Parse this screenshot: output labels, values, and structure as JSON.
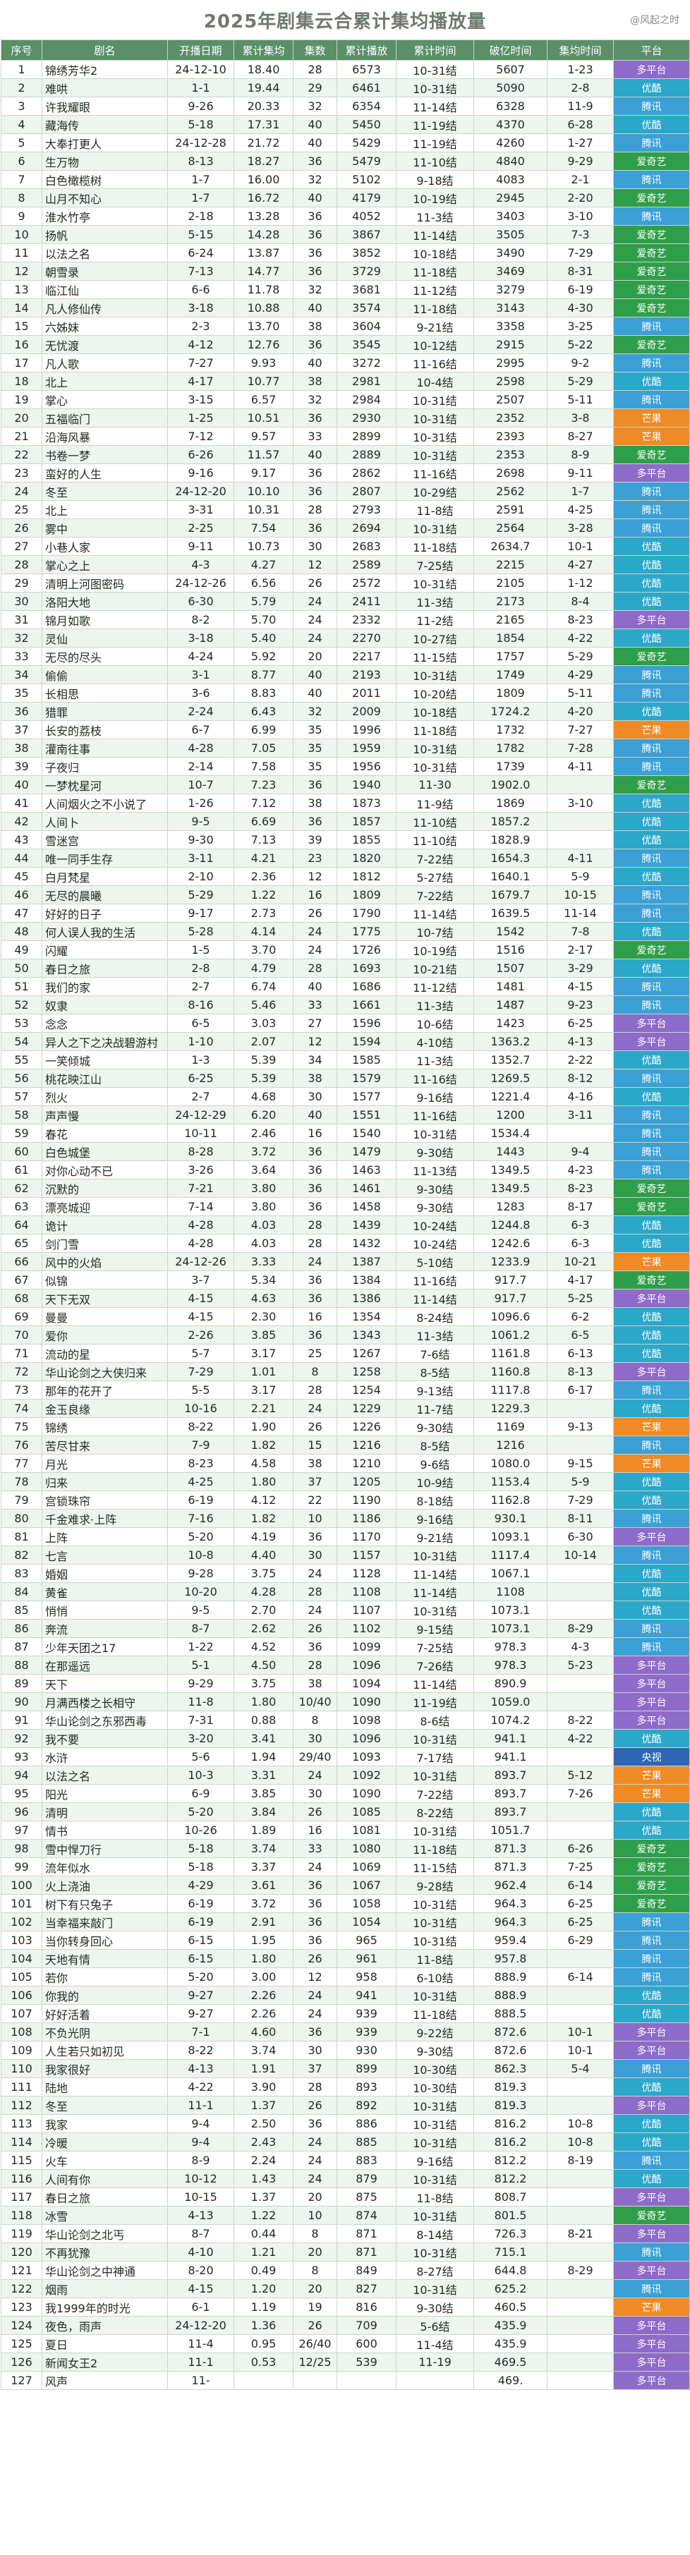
{
  "title": "2025年剧集云合累计集均播放量",
  "source": "@风起之时",
  "headers": [
    "序号",
    "剧名",
    "开播日期",
    "累计集均",
    "集数",
    "累计播放",
    "累计时间",
    "破亿时间",
    "集均时间",
    "平台"
  ],
  "platforms": {
    "爱奇艺": "p-iqiyi",
    "腾讯": "p-tencent",
    "优酷": "p-youku",
    "芒果": "p-mango",
    "多平台": "p-multi",
    "央视": "p-cctv"
  },
  "rows": [
    [
      "1",
      "锦绣芳华2",
      "24-12-10",
      "18.40",
      "28",
      "6573",
      "10-31结",
      "5607",
      "1-23",
      "多平台"
    ],
    [
      "2",
      "难哄",
      "1-1",
      "19.44",
      "29",
      "6461",
      "10-31结",
      "5090",
      "2-8",
      "优酷"
    ],
    [
      "3",
      "许我耀眼",
      "9-26",
      "20.33",
      "32",
      "6354",
      "11-14结",
      "6328",
      "11-9",
      "腾讯"
    ],
    [
      "4",
      "藏海传",
      "5-18",
      "17.31",
      "40",
      "5450",
      "11-19结",
      "4370",
      "6-28",
      "优酷"
    ],
    [
      "5",
      "大奉打更人",
      "24-12-28",
      "21.72",
      "40",
      "5429",
      "11-19结",
      "4260",
      "1-27",
      "腾讯"
    ],
    [
      "6",
      "生万物",
      "8-13",
      "18.27",
      "36",
      "5479",
      "11-10结",
      "4840",
      "9-29",
      "爱奇艺"
    ],
    [
      "7",
      "白色橄榄树",
      "1-7",
      "16.00",
      "32",
      "5102",
      "9-18结",
      "4083",
      "2-1",
      "腾讯"
    ],
    [
      "8",
      "山月不知心",
      "1-7",
      "16.72",
      "40",
      "4179",
      "10-19结",
      "2945",
      "2-20",
      "爱奇艺"
    ],
    [
      "9",
      "淮水竹亭",
      "2-18",
      "13.28",
      "36",
      "4052",
      "11-3结",
      "3403",
      "3-10",
      "腾讯"
    ],
    [
      "10",
      "扬帆",
      "5-15",
      "14.28",
      "36",
      "3867",
      "11-14结",
      "3505",
      "7-3",
      "爱奇艺"
    ],
    [
      "11",
      "以法之名",
      "6-24",
      "13.87",
      "36",
      "3852",
      "10-18结",
      "3490",
      "7-29",
      "爱奇艺"
    ],
    [
      "12",
      "朝雪录",
      "7-13",
      "14.77",
      "36",
      "3729",
      "11-18结",
      "3469",
      "8-31",
      "爱奇艺"
    ],
    [
      "13",
      "临江仙",
      "6-6",
      "11.78",
      "32",
      "3681",
      "11-12结",
      "3279",
      "6-19",
      "爱奇艺"
    ],
    [
      "14",
      "凡人修仙传",
      "3-18",
      "10.88",
      "40",
      "3574",
      "11-18结",
      "3143",
      "4-30",
      "爱奇艺"
    ],
    [
      "15",
      "六姊妹",
      "2-3",
      "13.70",
      "38",
      "3604",
      "9-21结",
      "3358",
      "3-25",
      "腾讯"
    ],
    [
      "16",
      "无忧渡",
      "4-12",
      "12.76",
      "36",
      "3545",
      "10-12结",
      "2915",
      "5-22",
      "爱奇艺"
    ],
    [
      "17",
      "凡人歌",
      "7-27",
      "9.93",
      "40",
      "3272",
      "11-16结",
      "2995",
      "9-2",
      "腾讯"
    ],
    [
      "18",
      "北上",
      "4-17",
      "10.77",
      "38",
      "2981",
      "10-4结",
      "2598",
      "5-29",
      "优酷"
    ],
    [
      "19",
      "掌心",
      "3-15",
      "6.57",
      "32",
      "2984",
      "10-31结",
      "2507",
      "5-11",
      "腾讯"
    ],
    [
      "20",
      "五福临门",
      "1-25",
      "10.51",
      "36",
      "2930",
      "10-31结",
      "2352",
      "3-8",
      "芒果"
    ],
    [
      "21",
      "沿海风暴",
      "7-12",
      "9.57",
      "33",
      "2899",
      "10-31结",
      "2393",
      "8-27",
      "芒果"
    ],
    [
      "22",
      "书卷一梦",
      "6-26",
      "11.57",
      "40",
      "2889",
      "10-31结",
      "2353",
      "8-9",
      "爱奇艺"
    ],
    [
      "23",
      "蛮好的人生",
      "9-16",
      "9.17",
      "36",
      "2862",
      "11-16结",
      "2698",
      "9-11",
      "多平台"
    ],
    [
      "24",
      "冬至",
      "24-12-20",
      "10.10",
      "36",
      "2807",
      "10-29结",
      "2562",
      "1-7",
      "腾讯"
    ],
    [
      "25",
      "北上",
      "3-31",
      "10.31",
      "28",
      "2793",
      "11-8结",
      "2591",
      "4-25",
      "腾讯"
    ],
    [
      "26",
      "雾中",
      "2-25",
      "7.54",
      "36",
      "2694",
      "10-31结",
      "2564",
      "3-28",
      "腾讯"
    ],
    [
      "27",
      "小巷人家",
      "9-11",
      "10.73",
      "30",
      "2683",
      "11-18结",
      "2634.7",
      "10-1",
      "优酷"
    ],
    [
      "28",
      "掌心之上",
      "4-3",
      "4.27",
      "12",
      "2589",
      "7-25结",
      "2215",
      "4-27",
      "优酷"
    ],
    [
      "29",
      "清明上河图密码",
      "24-12-26",
      "6.56",
      "26",
      "2572",
      "10-31结",
      "2105",
      "1-12",
      "优酷"
    ],
    [
      "30",
      "洛阳大地",
      "6-30",
      "5.79",
      "24",
      "2411",
      "11-3结",
      "2173",
      "8-4",
      "优酷"
    ],
    [
      "31",
      "锦月如歌",
      "8-2",
      "5.70",
      "24",
      "2332",
      "11-2结",
      "2165",
      "8-23",
      "多平台"
    ],
    [
      "32",
      "灵仙",
      "3-18",
      "5.40",
      "24",
      "2270",
      "10-27结",
      "1854",
      "4-22",
      "优酷"
    ],
    [
      "33",
      "无尽的尽头",
      "4-24",
      "5.92",
      "20",
      "2217",
      "11-15结",
      "1757",
      "5-29",
      "爱奇艺"
    ],
    [
      "34",
      "偷偷",
      "3-1",
      "8.77",
      "40",
      "2193",
      "10-31结",
      "1749",
      "4-29",
      "腾讯"
    ],
    [
      "35",
      "长相思",
      "3-6",
      "8.83",
      "40",
      "2011",
      "10-20结",
      "1809",
      "5-11",
      "腾讯"
    ],
    [
      "36",
      "猎罪",
      "2-24",
      "6.43",
      "32",
      "2009",
      "10-18结",
      "1724.2",
      "4-20",
      "优酷"
    ],
    [
      "37",
      "长安的荔枝",
      "6-7",
      "6.99",
      "35",
      "1996",
      "11-18结",
      "1732",
      "7-27",
      "芒果"
    ],
    [
      "38",
      "灌南往事",
      "4-28",
      "7.05",
      "35",
      "1959",
      "10-31结",
      "1782",
      "7-28",
      "腾讯"
    ],
    [
      "39",
      "子夜归",
      "2-14",
      "7.58",
      "35",
      "1956",
      "10-31结",
      "1739",
      "4-11",
      "腾讯"
    ],
    [
      "40",
      "一梦枕星河",
      "10-7",
      "7.23",
      "36",
      "1940",
      "11-30",
      "1902.0",
      "",
      "爱奇艺"
    ],
    [
      "41",
      "人间烟火之不小说了",
      "1-26",
      "7.12",
      "38",
      "1873",
      "11-9结",
      "1869",
      "3-10",
      "优酷"
    ],
    [
      "42",
      "人间卜",
      "9-5",
      "6.69",
      "36",
      "1857",
      "11-10结",
      "1857.2",
      "",
      "优酷"
    ],
    [
      "43",
      "雪迷宫",
      "9-30",
      "7.13",
      "39",
      "1855",
      "11-10结",
      "1828.9",
      "",
      "优酷"
    ],
    [
      "44",
      "唯一同手生存",
      "3-11",
      "4.21",
      "23",
      "1820",
      "7-22结",
      "1654.3",
      "4-11",
      "腾讯"
    ],
    [
      "45",
      "白月梵星",
      "2-10",
      "2.36",
      "12",
      "1812",
      "5-27结",
      "1640.1",
      "5-9",
      "优酷"
    ],
    [
      "46",
      "无尽的晨曦",
      "5-29",
      "1.22",
      "16",
      "1809",
      "7-22结",
      "1679.7",
      "10-15",
      "腾讯"
    ],
    [
      "47",
      "好好的日子",
      "9-17",
      "2.73",
      "26",
      "1790",
      "11-14结",
      "1639.5",
      "11-14",
      "腾讯"
    ],
    [
      "48",
      "何人误人我的生活",
      "5-28",
      "4.14",
      "24",
      "1775",
      "10-7结",
      "1542",
      "7-8",
      "优酷"
    ],
    [
      "49",
      "闪耀",
      "1-5",
      "3.70",
      "24",
      "1726",
      "10-19结",
      "1516",
      "2-17",
      "爱奇艺"
    ],
    [
      "50",
      "春日之旅",
      "2-8",
      "4.79",
      "28",
      "1693",
      "10-21结",
      "1507",
      "3-29",
      "优酷"
    ],
    [
      "51",
      "我们的家",
      "2-7",
      "6.74",
      "40",
      "1686",
      "11-12结",
      "1481",
      "4-15",
      "腾讯"
    ],
    [
      "52",
      "奴隶",
      "8-16",
      "5.46",
      "33",
      "1661",
      "11-3结",
      "1487",
      "9-23",
      "腾讯"
    ],
    [
      "53",
      "念念",
      "6-5",
      "3.03",
      "27",
      "1596",
      "10-6结",
      "1423",
      "6-25",
      "多平台"
    ],
    [
      "54",
      "异人之下之决战碧游村",
      "1-10",
      "2.07",
      "12",
      "1594",
      "4-10结",
      "1363.2",
      "4-13",
      "多平台"
    ],
    [
      "55",
      "一笑倾城",
      "1-3",
      "5.39",
      "34",
      "1585",
      "11-3结",
      "1352.7",
      "2-22",
      "优酷"
    ],
    [
      "56",
      "桃花映江山",
      "6-25",
      "5.39",
      "38",
      "1579",
      "11-16结",
      "1269.5",
      "8-12",
      "腾讯"
    ],
    [
      "57",
      "烈火",
      "2-7",
      "4.68",
      "30",
      "1577",
      "9-16结",
      "1221.4",
      "4-16",
      "优酷"
    ],
    [
      "58",
      "声声慢",
      "24-12-29",
      "6.20",
      "40",
      "1551",
      "11-16结",
      "1200",
      "3-11",
      "腾讯"
    ],
    [
      "59",
      "春花",
      "10-11",
      "2.46",
      "16",
      "1540",
      "10-31结",
      "1534.4",
      "",
      "腾讯"
    ],
    [
      "60",
      "白色城堡",
      "8-28",
      "3.72",
      "36",
      "1479",
      "9-30结",
      "1443",
      "9-4",
      "腾讯"
    ],
    [
      "61",
      "对你心动不已",
      "3-26",
      "3.64",
      "36",
      "1463",
      "11-13结",
      "1349.5",
      "4-23",
      "腾讯"
    ],
    [
      "62",
      "沉默的",
      "7-21",
      "3.80",
      "36",
      "1461",
      "9-30结",
      "1349.5",
      "8-23",
      "爱奇艺"
    ],
    [
      "63",
      "漂亮城迎",
      "7-14",
      "3.80",
      "36",
      "1458",
      "9-30结",
      "1283",
      "8-17",
      "爱奇艺"
    ],
    [
      "64",
      "诡计",
      "4-28",
      "4.03",
      "28",
      "1439",
      "10-24结",
      "1244.8",
      "6-3",
      "优酷"
    ],
    [
      "65",
      "剑门雪",
      "4-28",
      "4.03",
      "28",
      "1432",
      "10-24结",
      "1242.6",
      "6-3",
      "优酷"
    ],
    [
      "66",
      "风中的火焰",
      "24-12-26",
      "3.33",
      "24",
      "1387",
      "5-10结",
      "1233.9",
      "10-21",
      "芒果"
    ],
    [
      "67",
      "似锦",
      "3-7",
      "5.34",
      "36",
      "1384",
      "11-16结",
      "917.7",
      "4-17",
      "爱奇艺"
    ],
    [
      "68",
      "天下无双",
      "4-15",
      "4.63",
      "36",
      "1386",
      "11-14结",
      "917.7",
      "5-25",
      "多平台"
    ],
    [
      "69",
      "曼曼",
      "4-15",
      "2.30",
      "16",
      "1354",
      "8-24结",
      "1096.6",
      "6-2",
      "优酷"
    ],
    [
      "70",
      "爱你",
      "2-26",
      "3.85",
      "36",
      "1343",
      "11-3结",
      "1061.2",
      "6-5",
      "优酷"
    ],
    [
      "71",
      "流动的星",
      "5-7",
      "3.17",
      "25",
      "1267",
      "7-6结",
      "1161.8",
      "6-13",
      "优酷"
    ],
    [
      "72",
      "华山论剑之大侠归来",
      "7-29",
      "1.01",
      "8",
      "1258",
      "8-5结",
      "1160.8",
      "8-13",
      "多平台"
    ],
    [
      "73",
      "那年的花开了",
      "5-5",
      "3.17",
      "28",
      "1254",
      "9-13结",
      "1117.8",
      "6-17",
      "腾讯"
    ],
    [
      "74",
      "金玉良缘",
      "10-16",
      "2.21",
      "24",
      "1229",
      "11-7结",
      "1229.3",
      "",
      "优酷"
    ],
    [
      "75",
      "锦绣",
      "8-22",
      "1.90",
      "26",
      "1226",
      "9-30结",
      "1169",
      "9-13",
      "芒果"
    ],
    [
      "76",
      "苦尽甘来",
      "7-9",
      "1.82",
      "15",
      "1216",
      "8-5结",
      "1216",
      "",
      "腾讯"
    ],
    [
      "77",
      "月光",
      "8-23",
      "4.58",
      "38",
      "1210",
      "9-6结",
      "1080.0",
      "9-15",
      "芒果"
    ],
    [
      "78",
      "归来",
      "4-25",
      "1.80",
      "37",
      "1205",
      "10-9结",
      "1153.4",
      "5-9",
      "优酷"
    ],
    [
      "79",
      "宫锁珠帘",
      "6-19",
      "4.12",
      "22",
      "1190",
      "8-18结",
      "1162.8",
      "7-29",
      "优酷"
    ],
    [
      "80",
      "千金难求·上阵",
      "7-16",
      "1.82",
      "10",
      "1186",
      "9-16结",
      "930.1",
      "8-11",
      "腾讯"
    ],
    [
      "81",
      "上阵",
      "5-20",
      "4.19",
      "36",
      "1170",
      "9-21结",
      "1093.1",
      "6-30",
      "多平台"
    ],
    [
      "82",
      "七言",
      "10-8",
      "4.40",
      "30",
      "1157",
      "10-31结",
      "1117.4",
      "10-14",
      "腾讯"
    ],
    [
      "83",
      "婚姻",
      "9-28",
      "3.75",
      "24",
      "1128",
      "11-14结",
      "1067.1",
      "",
      "优酷"
    ],
    [
      "84",
      "黄雀",
      "10-20",
      "4.28",
      "28",
      "1108",
      "11-14结",
      "1108",
      "",
      "优酷"
    ],
    [
      "85",
      "悄悄",
      "9-5",
      "2.70",
      "24",
      "1107",
      "10-31结",
      "1073.1",
      "",
      "优酷"
    ],
    [
      "86",
      "奔流",
      "8-7",
      "2.62",
      "26",
      "1102",
      "9-15结",
      "1073.1",
      "8-29",
      "腾讯"
    ],
    [
      "87",
      "少年天团之17",
      "1-22",
      "4.52",
      "36",
      "1099",
      "7-25结",
      "978.3",
      "4-3",
      "腾讯"
    ],
    [
      "88",
      "在那遥远",
      "5-1",
      "4.50",
      "28",
      "1096",
      "7-26结",
      "978.3",
      "5-23",
      "多平台"
    ],
    [
      "89",
      "天下",
      "9-29",
      "3.75",
      "38",
      "1094",
      "11-14结",
      "890.9",
      "",
      "多平台"
    ],
    [
      "90",
      "月满西楼之长相守",
      "11-8",
      "1.80",
      "10/40",
      "1090",
      "11-19结",
      "1059.0",
      "",
      "多平台"
    ],
    [
      "91",
      "华山论剑之东邪西毒",
      "7-31",
      "0.88",
      "8",
      "1098",
      "8-6结",
      "1074.2",
      "8-22",
      "多平台"
    ],
    [
      "92",
      "我不要",
      "3-20",
      "3.41",
      "30",
      "1096",
      "10-31结",
      "941.1",
      "4-22",
      "优酷"
    ],
    [
      "93",
      "水浒",
      "5-6",
      "1.94",
      "29/40",
      "1093",
      "7-17结",
      "941.1",
      "",
      "央视"
    ],
    [
      "94",
      "以法之名",
      "10-3",
      "3.31",
      "24",
      "1092",
      "10-31结",
      "893.7",
      "5-12",
      "芒果"
    ],
    [
      "95",
      "阳光",
      "6-9",
      "3.85",
      "30",
      "1090",
      "7-22结",
      "893.7",
      "7-26",
      "芒果"
    ],
    [
      "96",
      "清明",
      "5-20",
      "3.84",
      "26",
      "1085",
      "8-22结",
      "893.7",
      "",
      "优酷"
    ],
    [
      "97",
      "情书",
      "10-26",
      "1.89",
      "16",
      "1081",
      "10-31结",
      "1051.7",
      "",
      "优酷"
    ],
    [
      "98",
      "雪中悍刀行",
      "5-18",
      "3.74",
      "33",
      "1080",
      "11-18结",
      "871.3",
      "6-26",
      "爱奇艺"
    ],
    [
      "99",
      "流年似水",
      "5-18",
      "3.37",
      "24",
      "1069",
      "11-15结",
      "871.3",
      "7-25",
      "爱奇艺"
    ],
    [
      "100",
      "火上浇油",
      "4-29",
      "3.61",
      "36",
      "1067",
      "9-28结",
      "962.4",
      "6-14",
      "爱奇艺"
    ],
    [
      "101",
      "树下有只兔子",
      "6-19",
      "3.72",
      "36",
      "1058",
      "10-31结",
      "964.3",
      "6-25",
      "爱奇艺"
    ],
    [
      "102",
      "当幸福来敲门",
      "6-19",
      "2.91",
      "36",
      "1054",
      "10-31结",
      "964.3",
      "6-25",
      "腾讯"
    ],
    [
      "103",
      "当你转身回心",
      "6-15",
      "1.95",
      "36",
      "965",
      "10-31结",
      "959.4",
      "6-29",
      "腾讯"
    ],
    [
      "104",
      "天地有情",
      "6-15",
      "1.80",
      "26",
      "961",
      "11-8结",
      "957.8",
      "",
      "腾讯"
    ],
    [
      "105",
      "若你",
      "5-20",
      "3.00",
      "12",
      "958",
      "6-10结",
      "888.9",
      "6-14",
      "腾讯"
    ],
    [
      "106",
      "你我的",
      "9-27",
      "2.26",
      "24",
      "941",
      "10-31结",
      "888.9",
      "",
      "优酷"
    ],
    [
      "107",
      "好好活着",
      "9-27",
      "2.26",
      "24",
      "939",
      "11-18结",
      "888.5",
      "",
      "优酷"
    ],
    [
      "108",
      "不负光阴",
      "7-1",
      "4.60",
      "36",
      "939",
      "9-22结",
      "872.6",
      "10-1",
      "多平台"
    ],
    [
      "109",
      "人生若只如初见",
      "8-22",
      "3.74",
      "30",
      "930",
      "9-30结",
      "872.6",
      "10-1",
      "多平台"
    ],
    [
      "110",
      "我家很好",
      "4-13",
      "1.91",
      "37",
      "899",
      "10-30结",
      "862.3",
      "5-4",
      "腾讯"
    ],
    [
      "111",
      "陆地",
      "4-22",
      "3.90",
      "28",
      "893",
      "10-30结",
      "819.3",
      "",
      "优酷"
    ],
    [
      "112",
      "冬至",
      "11-1",
      "1.37",
      "26",
      "892",
      "10-31结",
      "819.3",
      "",
      "多平台"
    ],
    [
      "113",
      "我家",
      "9-4",
      "2.50",
      "36",
      "886",
      "10-31结",
      "816.2",
      "10-8",
      "优酷"
    ],
    [
      "114",
      "冷暖",
      "9-4",
      "2.43",
      "24",
      "885",
      "10-31结",
      "816.2",
      "10-8",
      "优酷"
    ],
    [
      "115",
      "火车",
      "8-9",
      "2.24",
      "24",
      "883",
      "9-16结",
      "812.2",
      "8-19",
      "腾讯"
    ],
    [
      "116",
      "人间有你",
      "10-12",
      "1.43",
      "24",
      "879",
      "10-31结",
      "812.2",
      "",
      "优酷"
    ],
    [
      "117",
      "春日之旅",
      "10-15",
      "1.37",
      "20",
      "875",
      "11-8结",
      "808.7",
      "",
      "多平台"
    ],
    [
      "118",
      "冰雪",
      "4-13",
      "1.22",
      "10",
      "874",
      "10-31结",
      "801.5",
      "",
      "爱奇艺"
    ],
    [
      "119",
      "华山论剑之北丐",
      "8-7",
      "0.44",
      "8",
      "871",
      "8-14结",
      "726.3",
      "8-21",
      "多平台"
    ],
    [
      "120",
      "不再犹豫",
      "4-10",
      "1.21",
      "20",
      "871",
      "10-31结",
      "715.1",
      "",
      "腾讯"
    ],
    [
      "121",
      "华山论剑之中神通",
      "8-20",
      "0.49",
      "8",
      "849",
      "8-27结",
      "644.8",
      "8-29",
      "多平台"
    ],
    [
      "122",
      "烟雨",
      "4-15",
      "1.20",
      "20",
      "827",
      "10-31结",
      "625.2",
      "",
      "腾讯"
    ],
    [
      "123",
      "我1999年的时光",
      "6-1",
      "1.19",
      "19",
      "816",
      "9-30结",
      "460.5",
      "",
      "芒果"
    ],
    [
      "124",
      "夜色，雨声",
      "24-12-20",
      "1.36",
      "26",
      "709",
      "5-6结",
      "435.9",
      "",
      "多平台"
    ],
    [
      "125",
      "夏日",
      "11-4",
      "0.95",
      "26/40",
      "600",
      "11-4结",
      "435.9",
      "",
      "多平台"
    ],
    [
      "126",
      "新闻女王2",
      "11-1",
      "0.53",
      "12/25",
      "539",
      "11-19",
      "469.5",
      "",
      "多平台"
    ],
    [
      "127",
      "风声",
      "11-",
      "",
      "",
      "",
      "",
      "469.",
      "",
      "多平台"
    ]
  ]
}
